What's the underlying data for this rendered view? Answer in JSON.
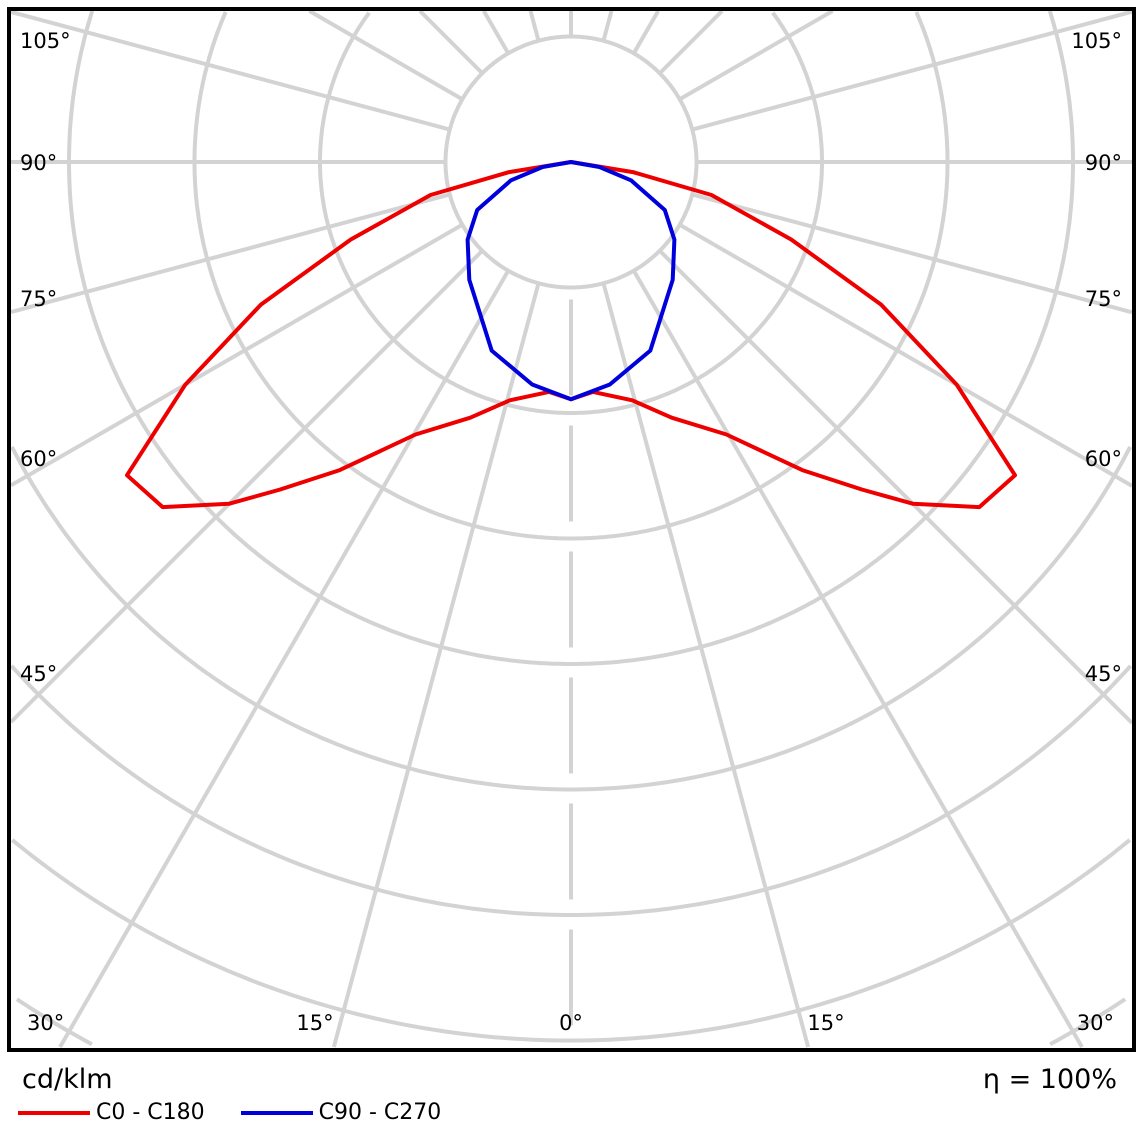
{
  "chart_data": {
    "type": "polar",
    "unit_label": "cd/klm",
    "efficiency_label": "η = 100%",
    "angle_labels_left": [
      "105°",
      "90°",
      "75°",
      "60°",
      "45°",
      "30°"
    ],
    "angle_labels_bottom": [
      "30°",
      "15°",
      "0°",
      "15°",
      "30°"
    ],
    "angle_grid_step_deg": 15,
    "radial_rings": 8,
    "radial_values_unit": "ring spacing (ring values not printed)",
    "grid": true,
    "legend_placement": "bottom-left",
    "series": [
      {
        "name": "C0 - C180",
        "color": "#ee0000",
        "symmetric": true,
        "gamma_deg": [
          0,
          5.5,
          14.4,
          21.5,
          29.7,
          36.9,
          41.6,
          45,
          49.8,
          54.8,
          60,
          65.3,
          70.6,
          76.8,
          80.7,
          90
        ],
        "r": [
          1.89,
          1.84,
          1.96,
          2.19,
          2.5,
          3.07,
          3.49,
          3.85,
          4.26,
          4.33,
          3.55,
          2.72,
          1.86,
          1.15,
          0.5,
          0
        ]
      },
      {
        "name": "C90 - C270",
        "color": "#0000dd",
        "symmetric": true,
        "gamma_deg": [
          0,
          9.9,
          22.8,
          40.8,
          53.1,
          62.9,
          73,
          80,
          90
        ],
        "r": [
          1.89,
          1.8,
          1.63,
          1.24,
          1.03,
          0.84,
          0.5,
          0.23,
          0
        ]
      }
    ]
  }
}
